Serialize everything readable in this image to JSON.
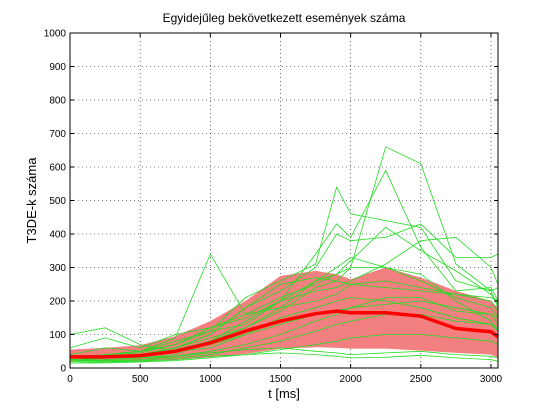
{
  "chart_data": {
    "type": "line",
    "title": "Egyidejűleg bekövetkezett események száma",
    "xlabel": "t [ms]",
    "ylabel": "T3DE-k száma",
    "xlim": [
      0,
      3050
    ],
    "ylim": [
      0,
      1000
    ],
    "xticks": [
      0,
      500,
      1000,
      1500,
      2000,
      2500,
      3000
    ],
    "yticks": [
      0,
      100,
      200,
      300,
      400,
      500,
      600,
      700,
      800,
      900,
      1000
    ],
    "grid": true,
    "colors": {
      "mean": "#ff0000",
      "band": "#f28080",
      "trials": "#22dd22"
    },
    "x": [
      0,
      250,
      500,
      750,
      1000,
      1250,
      1500,
      1750,
      1900,
      2000,
      2250,
      2500,
      2750,
      3000,
      3050
    ],
    "series": [
      {
        "role": "mean",
        "values": [
          33,
          33,
          37,
          50,
          75,
          110,
          140,
          162,
          170,
          165,
          165,
          155,
          118,
          108,
          93
        ]
      },
      {
        "role": "band-upper",
        "values": [
          55,
          60,
          68,
          95,
          140,
          200,
          275,
          290,
          280,
          265,
          300,
          270,
          230,
          200,
          180
        ]
      },
      {
        "role": "band-lower",
        "values": [
          22,
          22,
          22,
          24,
          32,
          42,
          58,
          62,
          60,
          58,
          58,
          52,
          45,
          40,
          30
        ]
      },
      {
        "role": "trial",
        "values": [
          60,
          90,
          60,
          100,
          120,
          150,
          200,
          260,
          280,
          300,
          300,
          280,
          200,
          140,
          110
        ]
      },
      {
        "role": "trial",
        "values": [
          40,
          60,
          50,
          90,
          340,
          160,
          180,
          260,
          300,
          330,
          300,
          260,
          210,
          180,
          150
        ]
      },
      {
        "role": "trial",
        "values": [
          30,
          40,
          50,
          70,
          110,
          210,
          260,
          310,
          540,
          460,
          440,
          420,
          260,
          230,
          240
        ]
      },
      {
        "role": "trial",
        "values": [
          30,
          40,
          50,
          80,
          110,
          130,
          200,
          340,
          430,
          390,
          590,
          360,
          230,
          240,
          200
        ]
      },
      {
        "role": "trial",
        "values": [
          25,
          30,
          40,
          60,
          90,
          120,
          170,
          240,
          260,
          300,
          660,
          610,
          310,
          230,
          180
        ]
      },
      {
        "role": "trial",
        "values": [
          20,
          30,
          40,
          60,
          100,
          180,
          230,
          300,
          400,
          380,
          390,
          430,
          330,
          330,
          340
        ]
      },
      {
        "role": "trial",
        "values": [
          20,
          25,
          30,
          40,
          80,
          120,
          180,
          200,
          220,
          250,
          260,
          240,
          220,
          200,
          170
        ]
      },
      {
        "role": "trial",
        "values": [
          20,
          22,
          25,
          35,
          50,
          70,
          100,
          140,
          160,
          180,
          210,
          210,
          170,
          160,
          150
        ]
      },
      {
        "role": "trial",
        "values": [
          20,
          20,
          22,
          30,
          40,
          60,
          80,
          110,
          130,
          140,
          160,
          160,
          140,
          130,
          120
        ]
      },
      {
        "role": "trial",
        "values": [
          15,
          15,
          18,
          22,
          30,
          40,
          55,
          70,
          80,
          90,
          100,
          100,
          90,
          80,
          70
        ]
      },
      {
        "role": "trial",
        "values": [
          20,
          25,
          30,
          35,
          45,
          55,
          60,
          50,
          45,
          40,
          45,
          50,
          40,
          35,
          30
        ]
      },
      {
        "role": "trial",
        "values": [
          15,
          18,
          20,
          25,
          35,
          40,
          45,
          40,
          35,
          30,
          32,
          38,
          30,
          25,
          20
        ]
      },
      {
        "role": "trial",
        "values": [
          30,
          35,
          40,
          60,
          100,
          180,
          250,
          270,
          260,
          250,
          240,
          230,
          220,
          210,
          200
        ]
      },
      {
        "role": "trial",
        "values": [
          25,
          30,
          35,
          55,
          80,
          140,
          200,
          230,
          240,
          260,
          310,
          380,
          390,
          300,
          250
        ]
      },
      {
        "role": "trial",
        "values": [
          100,
          120,
          70,
          50,
          60,
          100,
          150,
          180,
          200,
          210,
          200,
          180,
          150,
          130,
          110
        ]
      },
      {
        "role": "trial",
        "values": [
          30,
          40,
          45,
          70,
          120,
          160,
          210,
          250,
          280,
          320,
          420,
          350,
          290,
          220,
          190
        ]
      },
      {
        "role": "trial",
        "values": [
          25,
          30,
          35,
          50,
          70,
          100,
          130,
          160,
          170,
          180,
          190,
          200,
          180,
          160,
          130
        ]
      }
    ]
  }
}
